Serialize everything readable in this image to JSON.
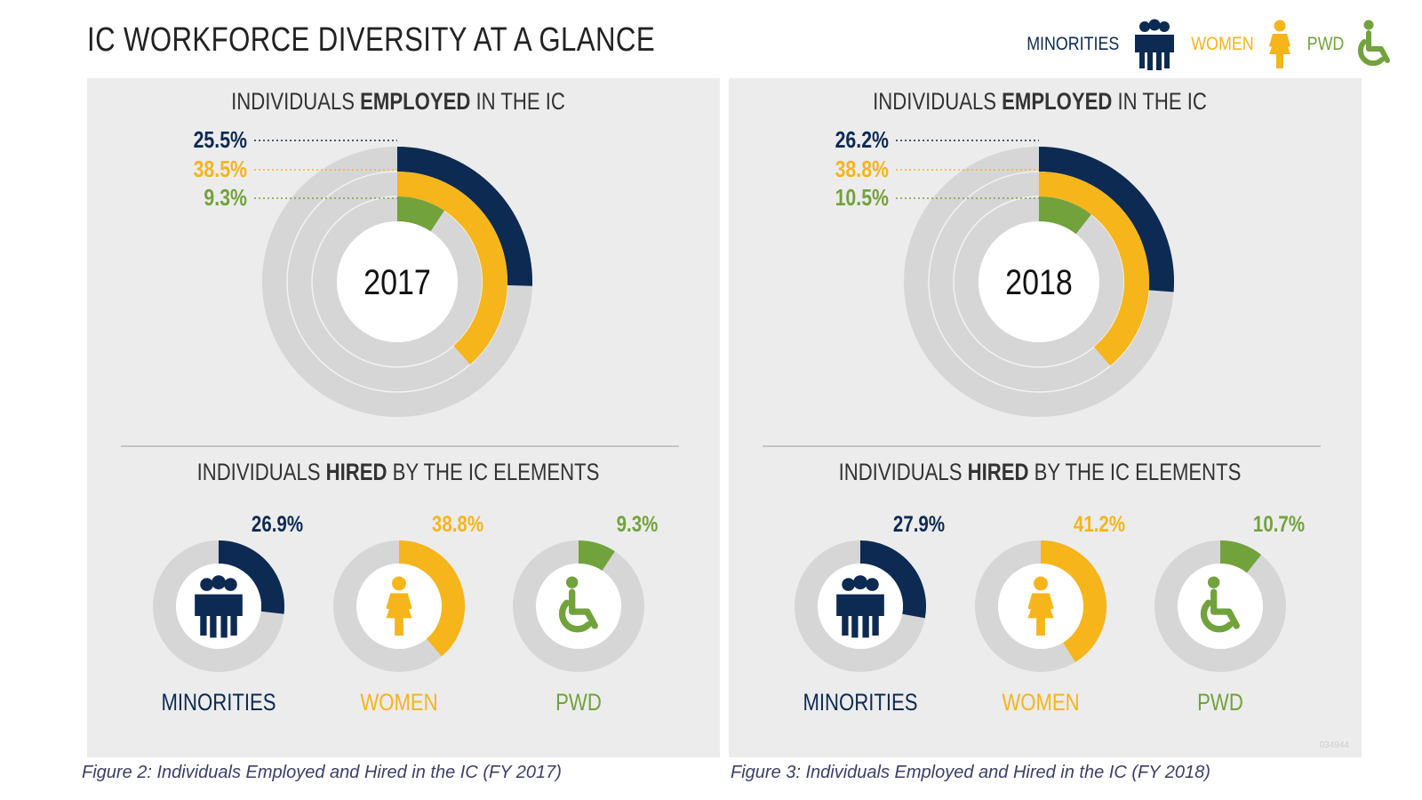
{
  "title": "IC WORKFORCE DIVERSITY AT A GLANCE",
  "legend": [
    {
      "label": "MINORITIES",
      "icon": "people-group-icon",
      "color": "#0d2a52"
    },
    {
      "label": "WOMEN",
      "icon": "woman-icon",
      "color": "#f5b51b"
    },
    {
      "label": "PWD",
      "icon": "wheelchair-icon",
      "color": "#72a23c"
    }
  ],
  "colors": {
    "navy": "#0d2a52",
    "gold": "#f5b51b",
    "green": "#72a23c",
    "track": "#d6d6d6",
    "panel": "#ececec"
  },
  "chart_data": [
    {
      "type": "radial-bar",
      "year": "2017",
      "employed_title_pre": "INDIVIDUALS ",
      "employed_title_bold": "EMPLOYED",
      "employed_title_post": " IN THE IC",
      "hired_title_pre": "INDIVIDUALS ",
      "hired_title_bold": "HIRED",
      "hired_title_post": " BY THE IC ELEMENTS",
      "employed": [
        {
          "name": "MINORITIES",
          "value": 25.5,
          "label": "25.5%"
        },
        {
          "name": "WOMEN",
          "value": 38.5,
          "label": "38.5%"
        },
        {
          "name": "PWD",
          "value": 9.3,
          "label": "9.3%"
        }
      ],
      "hired": [
        {
          "name": "MINORITIES",
          "value": 26.9,
          "label": "26.9%"
        },
        {
          "name": "WOMEN",
          "value": 38.8,
          "label": "38.8%"
        },
        {
          "name": "PWD",
          "value": 9.3,
          "label": "9.3%"
        }
      ],
      "caption": "Figure 2: Individuals Employed and Hired in the IC (FY 2017)"
    },
    {
      "type": "radial-bar",
      "year": "2018",
      "employed_title_pre": "INDIVIDUALS ",
      "employed_title_bold": "EMPLOYED",
      "employed_title_post": " IN THE IC",
      "hired_title_pre": "INDIVIDUALS ",
      "hired_title_bold": "HIRED",
      "hired_title_post": " BY THE IC ELEMENTS",
      "employed": [
        {
          "name": "MINORITIES",
          "value": 26.2,
          "label": "26.2%"
        },
        {
          "name": "WOMEN",
          "value": 38.8,
          "label": "38.8%"
        },
        {
          "name": "PWD",
          "value": 10.5,
          "label": "10.5%"
        }
      ],
      "hired": [
        {
          "name": "MINORITIES",
          "value": 27.9,
          "label": "27.9%"
        },
        {
          "name": "WOMEN",
          "value": 41.2,
          "label": "41.2%"
        },
        {
          "name": "PWD",
          "value": 10.7,
          "label": "10.7%"
        }
      ],
      "caption": "Figure 3: Individuals Employed and Hired in the IC (FY 2018)"
    }
  ],
  "watermark": "034944"
}
